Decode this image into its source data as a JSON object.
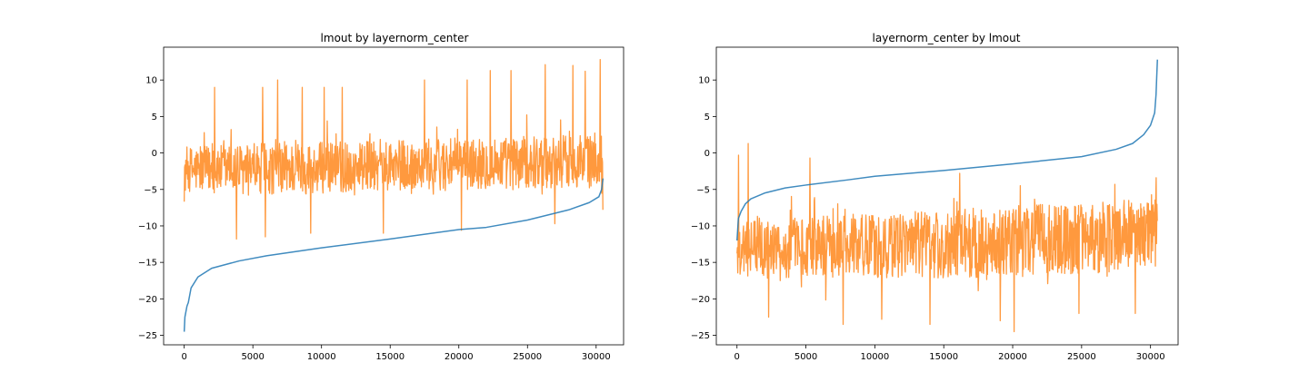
{
  "chart_data": [
    {
      "type": "line",
      "title": "lmout by layernorm_center",
      "xlabel": "",
      "ylabel": "",
      "xlim": [
        -1500,
        32000
      ],
      "ylim": [
        -26.3,
        14.5
      ],
      "xticks": [
        0,
        5000,
        10000,
        15000,
        20000,
        25000,
        30000
      ],
      "yticks": [
        -25,
        -20,
        -15,
        -10,
        -5,
        0,
        5,
        10
      ],
      "grid": false,
      "legend": "none",
      "series": [
        {
          "role": "sorted",
          "color": "#1f77b4",
          "points": [
            [
              0,
              -24.5
            ],
            [
              50,
              -22.5
            ],
            [
              200,
              -21.0
            ],
            [
              300,
              -20.5
            ],
            [
              500,
              -18.5
            ],
            [
              1000,
              -17.0
            ],
            [
              2000,
              -15.8
            ],
            [
              4000,
              -14.8
            ],
            [
              6000,
              -14.1
            ],
            [
              10000,
              -13.0
            ],
            [
              15000,
              -11.8
            ],
            [
              20000,
              -10.5
            ],
            [
              22000,
              -10.2
            ],
            [
              25000,
              -9.2
            ],
            [
              28000,
              -7.8
            ],
            [
              29500,
              -6.8
            ],
            [
              30200,
              -6.0
            ],
            [
              30400,
              -5.0
            ],
            [
              30500,
              -3.5
            ]
          ]
        },
        {
          "role": "paired",
          "color": "#ff7f0e",
          "n_points": 30500,
          "band_low": [
            [
              0,
              -5.5
            ],
            [
              5000,
              -6.0
            ],
            [
              15000,
              -5.5
            ],
            [
              25000,
              -5.0
            ],
            [
              30500,
              -5.0
            ]
          ],
          "band_high": [
            [
              0,
              1.0
            ],
            [
              5000,
              1.5
            ],
            [
              15000,
              2.0
            ],
            [
              25000,
              2.5
            ],
            [
              30500,
              3.0
            ]
          ],
          "noise_sigma": 2.0,
          "peaks": [
            [
              2200,
              9.0
            ],
            [
              5700,
              9.0
            ],
            [
              6800,
              10.0
            ],
            [
              8600,
              9.0
            ],
            [
              10200,
              9.0
            ],
            [
              11500,
              9.0
            ],
            [
              17500,
              10.0
            ],
            [
              20600,
              10.0
            ],
            [
              22300,
              11.3
            ],
            [
              23800,
              11.3
            ],
            [
              26300,
              12.1
            ],
            [
              28300,
              12.0
            ],
            [
              29200,
              11.2
            ],
            [
              30300,
              12.8
            ]
          ],
          "troughs": [
            [
              3800,
              -11.8
            ],
            [
              5900,
              -11.5
            ],
            [
              9200,
              -11.0
            ],
            [
              14500,
              -11.0
            ],
            [
              20200,
              -10.6
            ],
            [
              27000,
              -9.7
            ],
            [
              30500,
              -7.8
            ]
          ]
        }
      ]
    },
    {
      "type": "line",
      "title": "layernorm_center by lmout",
      "xlabel": "",
      "ylabel": "",
      "xlim": [
        -1500,
        32000
      ],
      "ylim": [
        -26.3,
        14.5
      ],
      "xticks": [
        0,
        5000,
        10000,
        15000,
        20000,
        25000,
        30000
      ],
      "yticks": [
        -25,
        -20,
        -15,
        -10,
        -5,
        0,
        5,
        10
      ],
      "grid": false,
      "legend": "none",
      "series": [
        {
          "role": "sorted",
          "color": "#1f77b4",
          "points": [
            [
              0,
              -12.0
            ],
            [
              100,
              -9.0
            ],
            [
              300,
              -8.0
            ],
            [
              600,
              -7.0
            ],
            [
              1000,
              -6.3
            ],
            [
              2000,
              -5.5
            ],
            [
              3500,
              -4.8
            ],
            [
              5000,
              -4.4
            ],
            [
              8000,
              -3.7
            ],
            [
              10000,
              -3.2
            ],
            [
              15000,
              -2.4
            ],
            [
              20000,
              -1.5
            ],
            [
              25000,
              -0.5
            ],
            [
              27500,
              0.5
            ],
            [
              28700,
              1.3
            ],
            [
              29500,
              2.5
            ],
            [
              30000,
              3.8
            ],
            [
              30300,
              5.5
            ],
            [
              30400,
              8.0
            ],
            [
              30450,
              10.5
            ],
            [
              30500,
              12.8
            ]
          ]
        },
        {
          "role": "paired",
          "color": "#ff7f0e",
          "n_points": 30500,
          "band_low": [
            [
              0,
              -17.0
            ],
            [
              5000,
              -17.5
            ],
            [
              15000,
              -17.5
            ],
            [
              25000,
              -17.0
            ],
            [
              30500,
              -16.0
            ]
          ],
          "band_high": [
            [
              0,
              -9.0
            ],
            [
              5000,
              -8.5
            ],
            [
              15000,
              -7.5
            ],
            [
              25000,
              -6.5
            ],
            [
              30500,
              -6.0
            ]
          ],
          "noise_sigma": 2.2,
          "peaks": [
            [
              100,
              -0.3
            ],
            [
              800,
              1.3
            ],
            [
              5300,
              -0.7
            ],
            [
              27400,
              -4.3
            ],
            [
              30400,
              -3.4
            ]
          ],
          "troughs": [
            [
              2300,
              -22.5
            ],
            [
              7700,
              -23.5
            ],
            [
              10500,
              -22.8
            ],
            [
              14000,
              -23.5
            ],
            [
              19100,
              -23.0
            ],
            [
              20100,
              -24.5
            ],
            [
              24800,
              -22.0
            ],
            [
              28900,
              -22.0
            ]
          ]
        }
      ]
    }
  ]
}
